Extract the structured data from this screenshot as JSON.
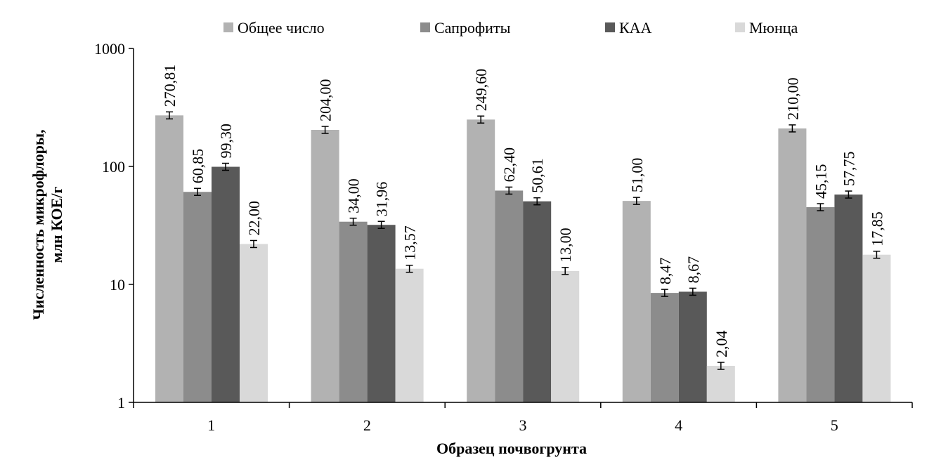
{
  "chart_data": {
    "type": "bar",
    "scale": "log10",
    "categories": [
      "1",
      "2",
      "3",
      "4",
      "5"
    ],
    "series": [
      {
        "name": "Общее число",
        "color": "#b2b2b2",
        "values": [
          270.81,
          204.0,
          249.6,
          51.0,
          210.0
        ],
        "labels": [
          "270,81",
          "204,00",
          "249,60",
          "51,00",
          "210,00"
        ]
      },
      {
        "name": "Сапрофиты",
        "color": "#8c8c8c",
        "values": [
          60.85,
          34.0,
          62.4,
          8.47,
          45.15
        ],
        "labels": [
          "60,85",
          "34,00",
          "62,40",
          "8,47",
          "45,15"
        ]
      },
      {
        "name": "КАА",
        "color": "#595959",
        "values": [
          99.3,
          31.96,
          50.61,
          8.67,
          57.75
        ],
        "labels": [
          "99,30",
          "31,96",
          "50,61",
          "8,67",
          "57,75"
        ]
      },
      {
        "name": "Мюнца",
        "color": "#d9d9d9",
        "values": [
          22.0,
          13.57,
          13.0,
          2.04,
          17.85
        ],
        "labels": [
          "22,00",
          "13,57",
          "13,00",
          "2,04",
          "17,85"
        ]
      }
    ],
    "ylim": [
      1,
      1000
    ],
    "yticks": [
      1,
      10,
      100,
      1000
    ],
    "ytick_labels": [
      "1",
      "10",
      "100",
      "1000"
    ],
    "xlabel": "Образец почвогрунта",
    "ylabel_line1": "Численность микрофлоры,",
    "ylabel_line2": "млн КОЕ/г",
    "legend_position": "top",
    "error_bars": true
  }
}
